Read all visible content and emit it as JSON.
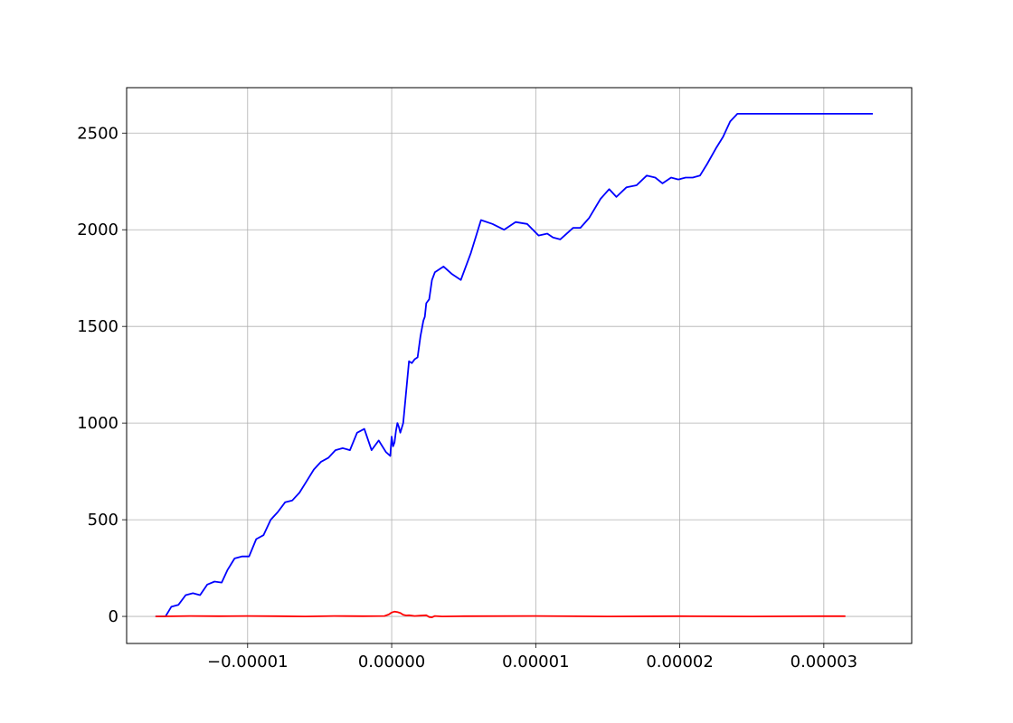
{
  "chart_data": {
    "type": "line",
    "title": "",
    "xlabel": "",
    "ylabel": "",
    "xlim": [
      -1.84e-05,
      3.61e-05
    ],
    "ylim": [
      -140,
      2735
    ],
    "grid": true,
    "x_ticks": [
      {
        "value": -1e-05,
        "label": "−0.00001"
      },
      {
        "value": 0.0,
        "label": "0.00000"
      },
      {
        "value": 1e-05,
        "label": "0.00001"
      },
      {
        "value": 2e-05,
        "label": "0.00002"
      },
      {
        "value": 3e-05,
        "label": "0.00003"
      }
    ],
    "y_ticks": [
      {
        "value": 0,
        "label": "0"
      },
      {
        "value": 500,
        "label": "500"
      },
      {
        "value": 1000,
        "label": "1000"
      },
      {
        "value": 1500,
        "label": "1500"
      },
      {
        "value": 2000,
        "label": "2000"
      },
      {
        "value": 2500,
        "label": "2500"
      }
    ],
    "series": [
      {
        "color": "#0000ff",
        "x": [
          -1.64e-05,
          -1.57e-05,
          -1.53e-05,
          -1.48e-05,
          -1.43e-05,
          -1.38e-05,
          -1.33e-05,
          -1.28e-05,
          -1.23e-05,
          -1.18e-05,
          -1.14e-05,
          -1.09e-05,
          -1.04e-05,
          -9.9e-06,
          -9.4e-06,
          -8.9e-06,
          -8.4e-06,
          -7.9e-06,
          -7.4e-06,
          -6.9e-06,
          -6.4e-06,
          -5.9e-06,
          -5.4e-06,
          -4.9e-06,
          -4.4e-06,
          -3.9e-06,
          -3.4e-06,
          -2.9e-06,
          -2.4e-06,
          -1.9e-06,
          -1.4e-06,
          -9e-07,
          -4e-07,
          -1e-07,
          0.0,
          1e-07,
          2e-07,
          3e-07,
          4e-07,
          5e-07,
          6e-07,
          8e-07,
          1e-06,
          1.2e-06,
          1.4e-06,
          1.6e-06,
          1.8e-06,
          2e-06,
          2.2e-06,
          2.3e-06,
          2.4e-06,
          2.6e-06,
          2.8e-06,
          3e-06,
          3.6e-06,
          4.2e-06,
          4.8e-06,
          5.5e-06,
          6.2e-06,
          7e-06,
          7.8e-06,
          8.6e-06,
          9.4e-06,
          1.02e-05,
          1.08e-05,
          1.12e-05,
          1.17e-05,
          1.26e-05,
          1.31e-05,
          1.37e-05,
          1.45e-05,
          1.51e-05,
          1.56e-05,
          1.63e-05,
          1.7e-05,
          1.77e-05,
          1.83e-05,
          1.88e-05,
          1.94e-05,
          1.99e-05,
          2.04e-05,
          2.09e-05,
          2.14e-05,
          2.19e-05,
          2.25e-05,
          2.3e-05,
          2.35e-05,
          2.4e-05,
          2.45e-05,
          2.5e-05,
          2.56e-05,
          2.61e-05,
          2.67e-05,
          2.72e-05,
          2.77e-05,
          2.82e-05,
          2.87e-05,
          2.93e-05,
          2.98e-05,
          3.03e-05,
          3.08e-05,
          3.14e-05,
          3.19e-05,
          3.24e-05,
          3.29e-05,
          3.34e-05
        ],
        "y": [
          0,
          0,
          50,
          60,
          110,
          120,
          110,
          165,
          180,
          175,
          240,
          300,
          310,
          310,
          400,
          420,
          500,
          540,
          590,
          600,
          640,
          700,
          760,
          800,
          820,
          860,
          870,
          860,
          950,
          970,
          860,
          910,
          850,
          830,
          930,
          880,
          900,
          960,
          1000,
          980,
          950,
          1000,
          1160,
          1320,
          1310,
          1330,
          1340,
          1450,
          1530,
          1550,
          1620,
          1640,
          1740,
          1780,
          1810,
          1770,
          1740,
          1880,
          2050,
          2030,
          2000,
          2040,
          2030,
          1970,
          1980,
          1960,
          1950,
          2010,
          2010,
          2060,
          2160,
          2210,
          2170,
          2220,
          2230,
          2280,
          2270,
          2240,
          2270,
          2260,
          2270,
          2270,
          2280,
          2340,
          2420,
          2480,
          2560,
          2600,
          2600,
          2600,
          2600,
          2600,
          2600,
          2600,
          2600,
          2600,
          2600,
          2600,
          2600,
          2600,
          2600,
          2600,
          2600,
          2600,
          2600,
          2600
        ]
      },
      {
        "color": "#ff0000",
        "x": [
          -1.64e-05,
          -1.4e-05,
          -1.2e-05,
          -1e-05,
          -8e-06,
          -6e-06,
          -4e-06,
          -2e-06,
          -5e-07,
          -2e-07,
          0.0,
          2e-07,
          4e-07,
          6e-07,
          8e-07,
          1e-06,
          1.2e-06,
          1.6e-06,
          2e-06,
          2.4e-06,
          2.6e-06,
          2.8e-06,
          3e-06,
          3.5e-06,
          5e-06,
          1e-05,
          1.5e-05,
          2e-05,
          2.5e-05,
          3e-05,
          3.15e-05
        ],
        "y": [
          0,
          2,
          1,
          2,
          1,
          0,
          2,
          1,
          2,
          10,
          20,
          25,
          22,
          18,
          8,
          5,
          6,
          2,
          4,
          6,
          -3,
          -5,
          2,
          0,
          1,
          2,
          0,
          1,
          0,
          1,
          1
        ]
      }
    ]
  }
}
